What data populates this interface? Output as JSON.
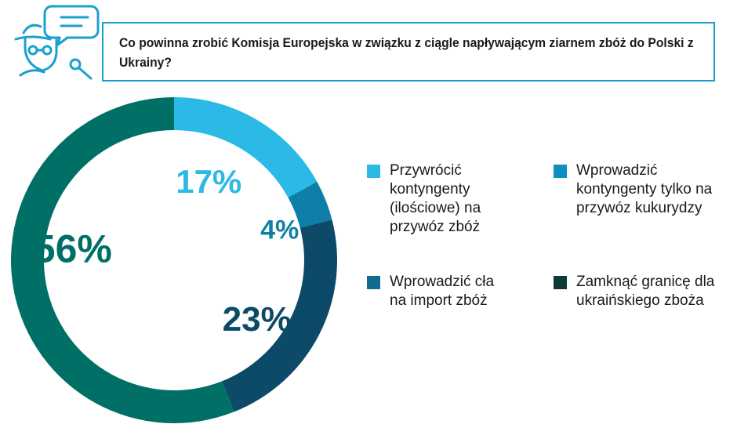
{
  "question": "Co powinna zrobić Komisja Europejska w związku z ciągle napływającym ziarnem zbóż do Polski z Ukrainy?",
  "colors": {
    "accent": "#1aa0cf",
    "slice1": "#2bb9e5",
    "slice2": "#0e7fa8",
    "slice3": "#0d4a68",
    "slice4": "#006f66",
    "legend_dark": "#0c3b37"
  },
  "chart_data": {
    "type": "pie",
    "title": "Co powinna zrobić Komisja Europejska w związku z ciągle napływającym ziarnem zbóż do Polski z Ukrainy?",
    "donut": true,
    "categories": [
      "Przywrócić kontyngenty (ilościowe) na przywóz zbóż",
      "Wprowadzić kontyngenty tylko na przywóz kukurydzy",
      "Wprowadzić cła na import zbóż",
      "Zamknąć granicę dla ukraińskiego zboża"
    ],
    "values": [
      17,
      4,
      23,
      56
    ],
    "value_labels": [
      "17%",
      "4%",
      "23%",
      "56%"
    ],
    "legend_position": "right"
  }
}
